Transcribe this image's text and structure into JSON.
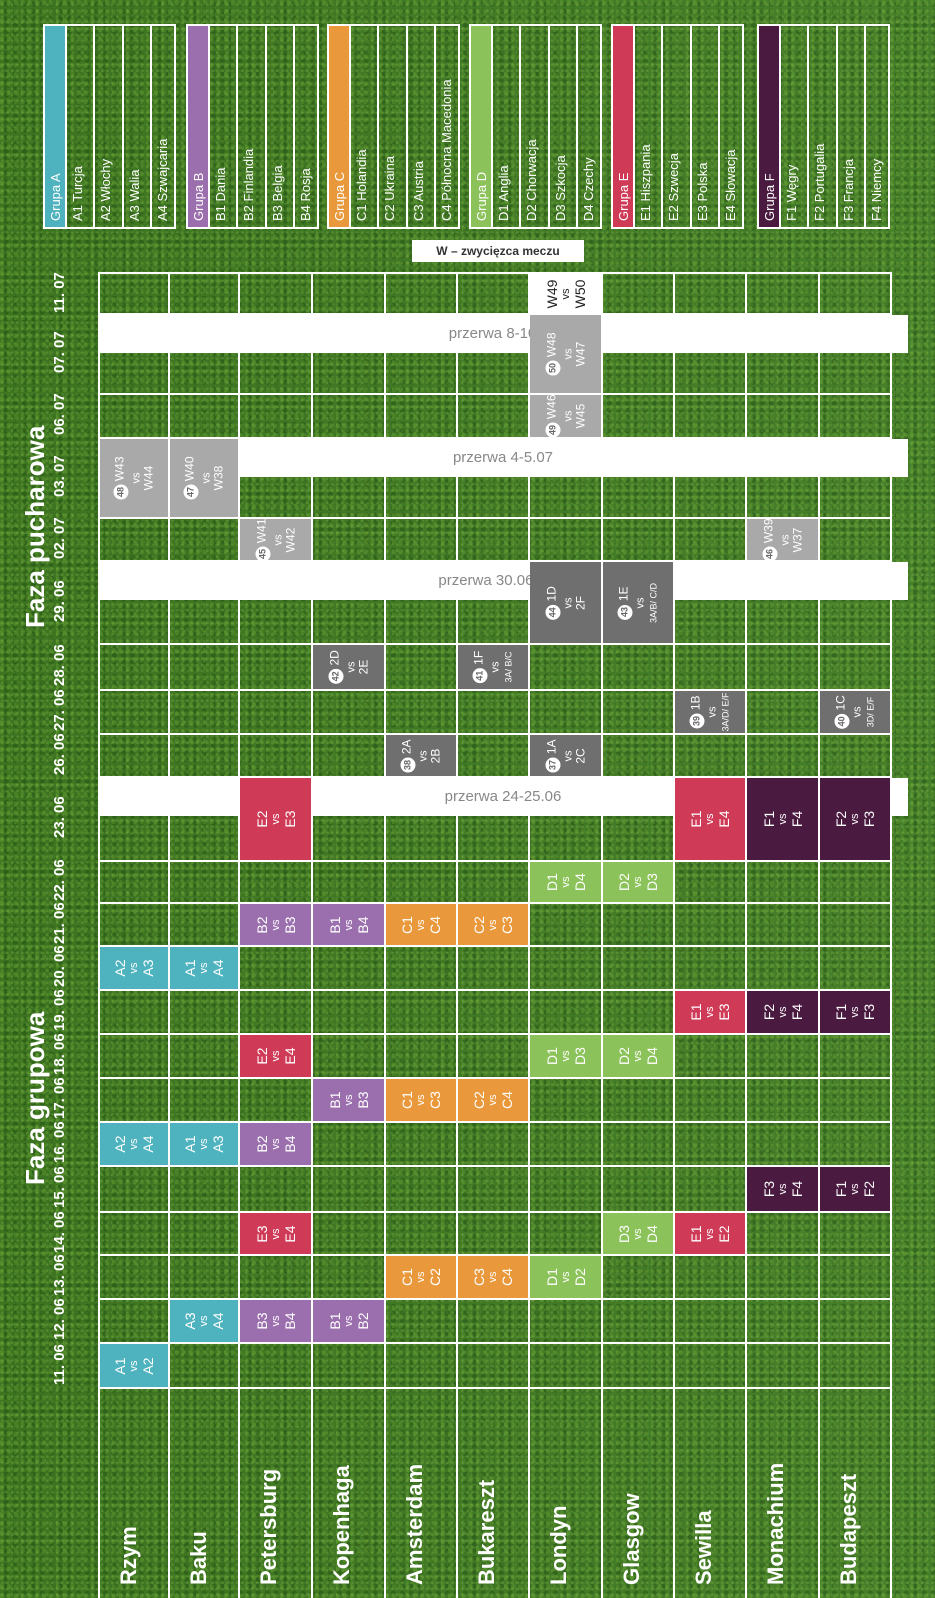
{
  "phases": {
    "group": "Faza grupowa",
    "knockout": "Faza pucharowa"
  },
  "legend_note": "W – zwycięzca meczu",
  "cities": [
    "Rzym",
    "Baku",
    "Petersburg",
    "Kopenhaga",
    "Amsterdam",
    "Bukareszt",
    "Londyn",
    "Glasgow",
    "Sewilla",
    "Monachium",
    "Budapeszt"
  ],
  "dates": [
    "11. 06",
    "12. 06",
    "13. 06",
    "14. 06",
    "15. 06",
    "16. 06",
    "17. 06",
    "18. 06",
    "19. 06",
    "20. 06",
    "21. 06",
    "22. 06",
    "23. 06",
    "26. 06",
    "27. 06",
    "28. 06",
    "29. 06",
    "02. 07",
    "03. 07",
    "06. 07",
    "07. 07",
    "11. 07"
  ],
  "breaks": [
    "przerwa 24-25.06",
    "przerwa 30.06-1.07",
    "przerwa 4-5.07",
    "przerwa 8-10.07"
  ],
  "groups": [
    {
      "name": "Grupa A",
      "color": "#4fb3bf",
      "teams": [
        "A1 Turcja",
        "A2 Włochy",
        "A3 Walia",
        "A4 Szwajcaria"
      ]
    },
    {
      "name": "Grupa B",
      "color": "#9b6fae",
      "teams": [
        "B1 Dania",
        "B2 Finlandia",
        "B3 Belgia",
        "B4 Rosja"
      ]
    },
    {
      "name": "Grupa C",
      "color": "#e9993b",
      "teams": [
        "C1 Holandia",
        "C2 Ukraina",
        "C3 Austria",
        "C4 Północna Macedonia"
      ]
    },
    {
      "name": "Grupa D",
      "color": "#8cc25a",
      "teams": [
        "D1 Anglia",
        "D2 Chorwacja",
        "D3 Szkocja",
        "D4 Czechy"
      ]
    },
    {
      "name": "Grupa E",
      "color": "#cf3a57",
      "teams": [
        "E1 Hiszpania",
        "E2 Szwecja",
        "E3 Polska",
        "E4 Słowacja"
      ]
    },
    {
      "name": "Grupa F",
      "color": "#4a1a40",
      "teams": [
        "F1 Węgry",
        "F2 Portugalia",
        "F3 Francja",
        "F4 Niemcy"
      ]
    }
  ],
  "colors": {
    "A": "#4fb3bf",
    "B": "#9b6fae",
    "C": "#e9993b",
    "D": "#8cc25a",
    "E": "#cf3a57",
    "F": "#4a1a40",
    "knockout_dark": "#6f6f6f",
    "knockout_light": "#a9a9a9",
    "final": "#ffffff"
  },
  "matches": [
    {
      "city": 0,
      "date": 0,
      "g": "A",
      "t1": "A1",
      "t2": "A2"
    },
    {
      "city": 1,
      "date": 1,
      "g": "A",
      "t1": "A3",
      "t2": "A4"
    },
    {
      "city": 2,
      "date": 1,
      "g": "B",
      "t1": "B3",
      "t2": "B4"
    },
    {
      "city": 3,
      "date": 1,
      "g": "B",
      "t1": "B1",
      "t2": "B2"
    },
    {
      "city": 4,
      "date": 2,
      "g": "C",
      "t1": "C1",
      "t2": "C2"
    },
    {
      "city": 5,
      "date": 2,
      "g": "C",
      "t1": "C3",
      "t2": "C4"
    },
    {
      "city": 6,
      "date": 2,
      "g": "D",
      "t1": "D1",
      "t2": "D2"
    },
    {
      "city": 2,
      "date": 3,
      "g": "E",
      "t1": "E3",
      "t2": "E4"
    },
    {
      "city": 7,
      "date": 3,
      "g": "D",
      "t1": "D3",
      "t2": "D4"
    },
    {
      "city": 8,
      "date": 3,
      "g": "E",
      "t1": "E1",
      "t2": "E2"
    },
    {
      "city": 9,
      "date": 4,
      "g": "F",
      "t1": "F3",
      "t2": "F4"
    },
    {
      "city": 10,
      "date": 4,
      "g": "F",
      "t1": "F1",
      "t2": "F2"
    },
    {
      "city": 0,
      "date": 5,
      "g": "A",
      "t1": "A2",
      "t2": "A4"
    },
    {
      "city": 1,
      "date": 5,
      "g": "A",
      "t1": "A1",
      "t2": "A3"
    },
    {
      "city": 2,
      "date": 5,
      "g": "B",
      "t1": "B2",
      "t2": "B4"
    },
    {
      "city": 3,
      "date": 6,
      "g": "B",
      "t1": "B1",
      "t2": "B3"
    },
    {
      "city": 4,
      "date": 6,
      "g": "C",
      "t1": "C1",
      "t2": "C3"
    },
    {
      "city": 5,
      "date": 6,
      "g": "C",
      "t1": "C2",
      "t2": "C4"
    },
    {
      "city": 2,
      "date": 7,
      "g": "E",
      "t1": "E2",
      "t2": "E4"
    },
    {
      "city": 6,
      "date": 7,
      "g": "D",
      "t1": "D1",
      "t2": "D3"
    },
    {
      "city": 7,
      "date": 7,
      "g": "D",
      "t1": "D2",
      "t2": "D4"
    },
    {
      "city": 8,
      "date": 8,
      "g": "E",
      "t1": "E1",
      "t2": "E3"
    },
    {
      "city": 9,
      "date": 8,
      "g": "F",
      "t1": "F2",
      "t2": "F4"
    },
    {
      "city": 10,
      "date": 8,
      "g": "F",
      "t1": "F1",
      "t2": "F3"
    },
    {
      "city": 0,
      "date": 9,
      "g": "A",
      "t1": "A2",
      "t2": "A3"
    },
    {
      "city": 1,
      "date": 9,
      "g": "A",
      "t1": "A1",
      "t2": "A4"
    },
    {
      "city": 2,
      "date": 10,
      "g": "B",
      "t1": "B2",
      "t2": "B3"
    },
    {
      "city": 3,
      "date": 10,
      "g": "B",
      "t1": "B1",
      "t2": "B4"
    },
    {
      "city": 4,
      "date": 10,
      "g": "C",
      "t1": "C1",
      "t2": "C4"
    },
    {
      "city": 5,
      "date": 10,
      "g": "C",
      "t1": "C2",
      "t2": "C3"
    },
    {
      "city": 6,
      "date": 11,
      "g": "D",
      "t1": "D1",
      "t2": "D4"
    },
    {
      "city": 7,
      "date": 11,
      "g": "D",
      "t1": "D2",
      "t2": "D3"
    },
    {
      "city": 2,
      "date": 12,
      "g": "E",
      "t1": "E2",
      "t2": "E3"
    },
    {
      "city": 8,
      "date": 12,
      "g": "E",
      "t1": "E1",
      "t2": "E4"
    },
    {
      "city": 9,
      "date": 12,
      "g": "F",
      "t1": "F1",
      "t2": "F4"
    },
    {
      "city": 10,
      "date": 12,
      "g": "F",
      "t1": "F2",
      "t2": "F3"
    },
    {
      "city": 4,
      "date": 13,
      "g": "K",
      "n": "38",
      "t1": "2A",
      "t2": "2B"
    },
    {
      "city": 6,
      "date": 13,
      "g": "K",
      "n": "37",
      "t1": "1A",
      "t2": "2C"
    },
    {
      "city": 8,
      "date": 14,
      "g": "K",
      "n": "39",
      "t1": "1B",
      "t2": "3A/D/ E/F"
    },
    {
      "city": 10,
      "date": 14,
      "g": "K",
      "n": "40",
      "t1": "1C",
      "t2": "3D/ E/F"
    },
    {
      "city": 3,
      "date": 15,
      "g": "K",
      "n": "42",
      "t1": "2D",
      "t2": "2E"
    },
    {
      "city": 5,
      "date": 15,
      "g": "K",
      "n": "41",
      "t1": "1F",
      "t2": "3A/ B/C"
    },
    {
      "city": 6,
      "date": 16,
      "g": "K",
      "n": "44",
      "t1": "1D",
      "t2": "2F"
    },
    {
      "city": 7,
      "date": 16,
      "g": "K",
      "n": "43",
      "t1": "1E",
      "t2": "3A/B/ C/D"
    },
    {
      "city": 2,
      "date": 17,
      "g": "L",
      "n": "45",
      "t1": "W41",
      "t2": "W42"
    },
    {
      "city": 9,
      "date": 17,
      "g": "L",
      "n": "46",
      "t1": "W39",
      "t2": "W37"
    },
    {
      "city": 0,
      "date": 18,
      "g": "L",
      "n": "48",
      "t1": "W43",
      "t2": "W44"
    },
    {
      "city": 1,
      "date": 18,
      "g": "L",
      "n": "47",
      "t1": "W40",
      "t2": "W38"
    },
    {
      "city": 6,
      "date": 19,
      "g": "L",
      "n": "49",
      "t1": "W46",
      "t2": "W45"
    },
    {
      "city": 6,
      "date": 20,
      "g": "L",
      "n": "50",
      "t1": "W48",
      "t2": "W47"
    },
    {
      "city": 6,
      "date": 21,
      "g": "FINAL",
      "t1": "W49",
      "t2": "W50"
    }
  ],
  "vs": "vs"
}
